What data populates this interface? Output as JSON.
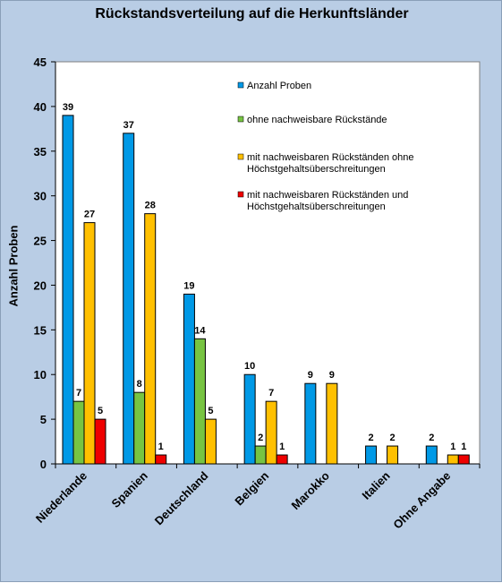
{
  "chart_data": {
    "type": "bar",
    "title": "Rückstandsverteilung auf die Herkunftsländer",
    "ylabel": "Anzahl Proben",
    "xlabel": "",
    "ylim": [
      0,
      45
    ],
    "yticks": [
      0,
      5,
      10,
      15,
      20,
      25,
      30,
      35,
      40,
      45
    ],
    "grid": false,
    "legend_position": "top-right",
    "categories": [
      "Niederlande",
      "Spanien",
      "Deutschland",
      "Belgien",
      "Marokko",
      "Italien",
      "Ohne Angabe"
    ],
    "series": [
      {
        "name": "Anzahl Proben",
        "color": "#0099e6",
        "values": [
          39,
          37,
          19,
          10,
          9,
          2,
          2
        ]
      },
      {
        "name": "ohne nachweisbare Rückstände",
        "color": "#77c442",
        "values": [
          7,
          8,
          14,
          2,
          0,
          0,
          0
        ]
      },
      {
        "name": "mit nachweisbaren Rückständen ohne Höchstgehaltsüberschreitungen",
        "legend_lines": [
          "mit nachweisbaren Rückständen ohne",
          "Höchstgehaltsüberschreitungen"
        ],
        "color": "#ffc000",
        "values": [
          27,
          28,
          5,
          7,
          9,
          2,
          1
        ]
      },
      {
        "name": "mit nachweisbaren Rückständen und Höchstgehaltsüberschreitungen",
        "legend_lines": [
          "mit nachweisbaren Rückständen und",
          "Höchstgehaltsüberschreitungen"
        ],
        "color": "#ee0000",
        "values": [
          5,
          1,
          0,
          1,
          0,
          0,
          1
        ]
      }
    ],
    "plot_background": "#ffffff",
    "frame_background": "#b9cde5"
  }
}
